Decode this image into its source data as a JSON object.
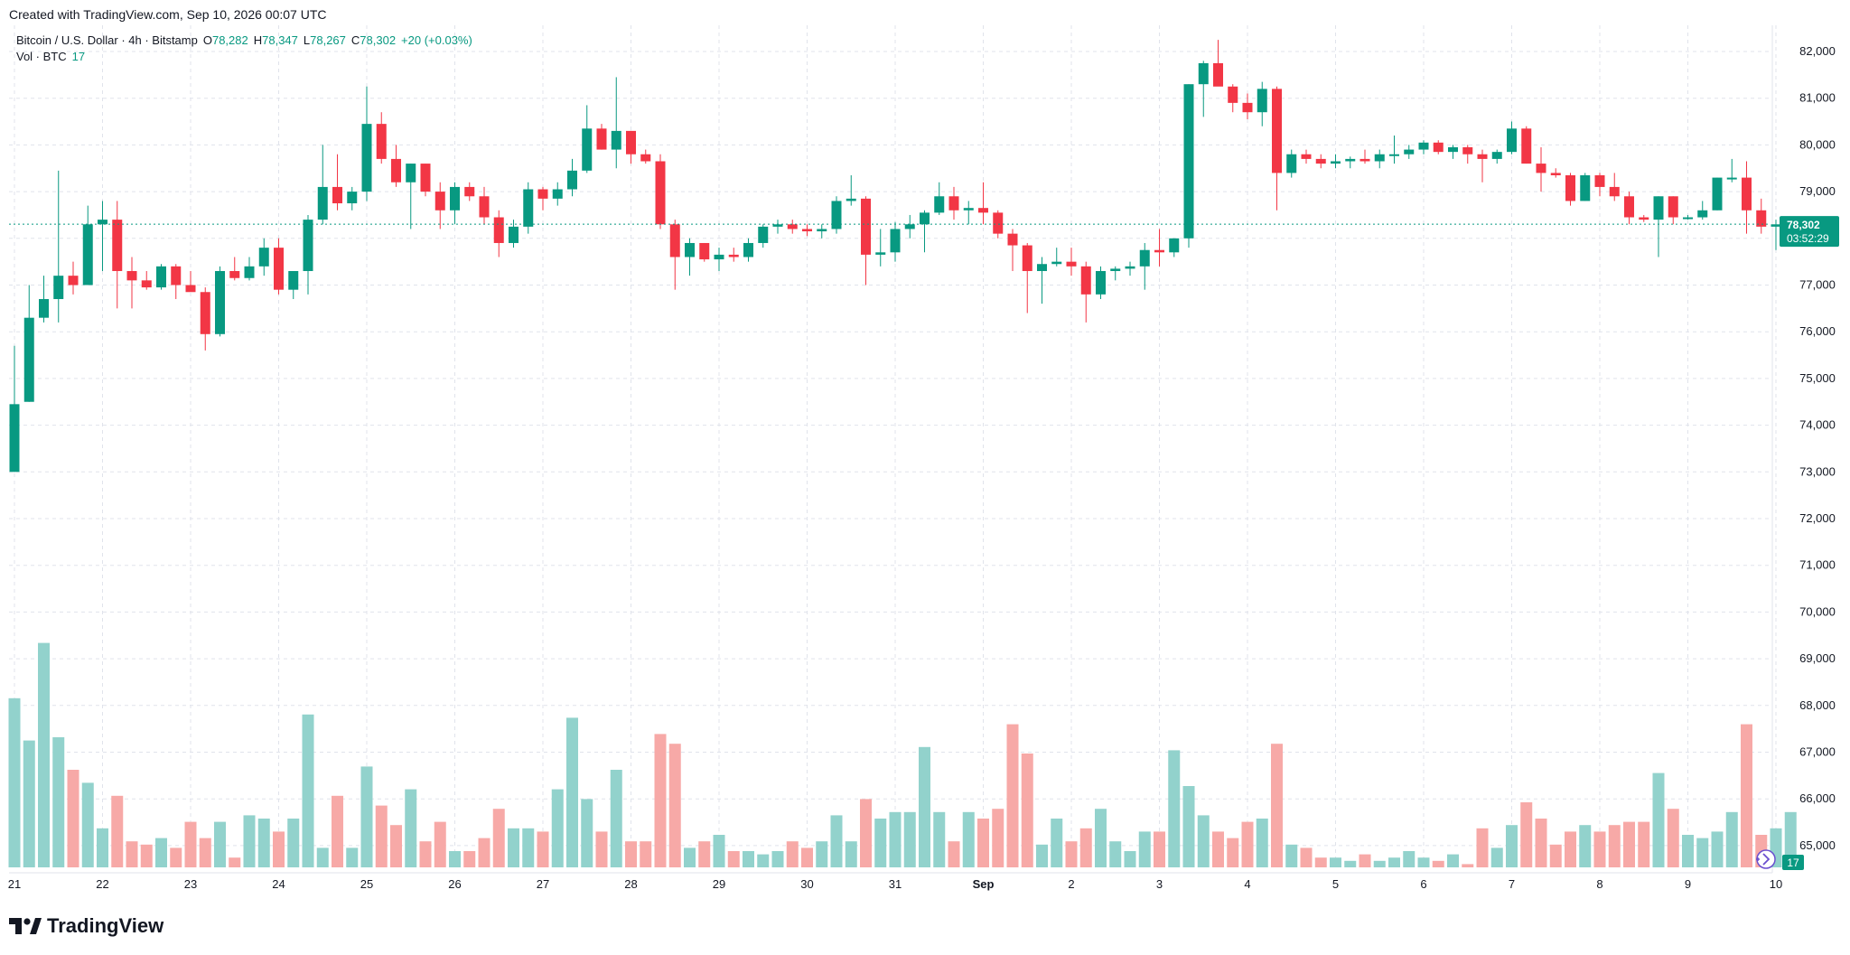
{
  "header": {
    "credit": "Created with TradingView.com, Sep 10, 2026 00:07 UTC"
  },
  "legend": {
    "symbol": "Bitcoin / U.S. Dollar · 4h · Bitstamp",
    "o_label": "O",
    "o": "78,282",
    "h_label": "H",
    "h": "78,347",
    "l_label": "L",
    "l": "78,267",
    "c_label": "C",
    "c": "78,302",
    "change": "+20 (+0.03%)",
    "vol_label": "Vol · BTC",
    "vol": "17"
  },
  "price_tag": {
    "price": "78,302",
    "countdown": "03:52:29"
  },
  "volume_tag": "17",
  "brand": "TradingView",
  "colors": {
    "up": "#089981",
    "down": "#f23645",
    "vol_up": "#92d2cc",
    "vol_down": "#f7a9a7",
    "grid": "#e0e3eb"
  },
  "chart_data": {
    "type": "candlestick",
    "interval": "4h",
    "price_axis": {
      "ticks": [
        "82,000",
        "81,000",
        "80,000",
        "79,000",
        "78,000",
        "77,000",
        "76,000",
        "75,000",
        "74,000",
        "73,000",
        "72,000",
        "71,000",
        "70,000",
        "69,000",
        "68,000",
        "67,000",
        "66,000",
        "65,000"
      ],
      "ylim": [
        64500,
        82500
      ]
    },
    "time_axis": {
      "labels": [
        "21",
        "22",
        "23",
        "24",
        "25",
        "26",
        "27",
        "28",
        "29",
        "30",
        "31",
        "Sep",
        "2",
        "3",
        "4",
        "5",
        "6",
        "7",
        "8",
        "9",
        "10"
      ]
    },
    "last_close": 78302,
    "candles": [
      {
        "o": 73000,
        "h": 75700,
        "l": 73000,
        "c": 74450,
        "v": 52
      },
      {
        "o": 74500,
        "h": 77000,
        "l": 74500,
        "c": 76300,
        "v": 39
      },
      {
        "o": 76300,
        "h": 77200,
        "l": 76200,
        "c": 76700,
        "v": 69
      },
      {
        "o": 76700,
        "h": 79450,
        "l": 76200,
        "c": 77200,
        "v": 40
      },
      {
        "o": 77200,
        "h": 77500,
        "l": 76800,
        "c": 77000,
        "v": 30
      },
      {
        "o": 77000,
        "h": 78700,
        "l": 77000,
        "c": 78300,
        "v": 26
      },
      {
        "o": 78300,
        "h": 78800,
        "l": 77300,
        "c": 78400,
        "v": 12
      },
      {
        "o": 78400,
        "h": 78800,
        "l": 76500,
        "c": 77300,
        "v": 22
      },
      {
        "o": 77300,
        "h": 77600,
        "l": 76500,
        "c": 77100,
        "v": 8
      },
      {
        "o": 77100,
        "h": 77300,
        "l": 76900,
        "c": 76950,
        "v": 7
      },
      {
        "o": 76950,
        "h": 77450,
        "l": 76900,
        "c": 77400,
        "v": 9
      },
      {
        "o": 77400,
        "h": 77450,
        "l": 76700,
        "c": 77000,
        "v": 6
      },
      {
        "o": 77000,
        "h": 77300,
        "l": 76900,
        "c": 76850,
        "v": 14
      },
      {
        "o": 76850,
        "h": 76950,
        "l": 75600,
        "c": 75950,
        "v": 9
      },
      {
        "o": 75950,
        "h": 77400,
        "l": 75900,
        "c": 77300,
        "v": 14
      },
      {
        "o": 77300,
        "h": 77600,
        "l": 77100,
        "c": 77150,
        "v": 3
      },
      {
        "o": 77150,
        "h": 77600,
        "l": 77100,
        "c": 77400,
        "v": 16
      },
      {
        "o": 77400,
        "h": 78000,
        "l": 77200,
        "c": 77800,
        "v": 15
      },
      {
        "o": 77800,
        "h": 78000,
        "l": 76800,
        "c": 76900,
        "v": 11
      },
      {
        "o": 76900,
        "h": 77300,
        "l": 76700,
        "c": 77300,
        "v": 15
      },
      {
        "o": 77300,
        "h": 78500,
        "l": 76800,
        "c": 78400,
        "v": 47
      },
      {
        "o": 78400,
        "h": 80000,
        "l": 78300,
        "c": 79100,
        "v": 6
      },
      {
        "o": 79100,
        "h": 79800,
        "l": 78600,
        "c": 78750,
        "v": 22
      },
      {
        "o": 78750,
        "h": 79100,
        "l": 78600,
        "c": 79000,
        "v": 6
      },
      {
        "o": 79000,
        "h": 81250,
        "l": 78800,
        "c": 80450,
        "v": 31
      },
      {
        "o": 80450,
        "h": 80700,
        "l": 79600,
        "c": 79700,
        "v": 19
      },
      {
        "o": 79700,
        "h": 80000,
        "l": 79100,
        "c": 79200,
        "v": 13
      },
      {
        "o": 79200,
        "h": 79600,
        "l": 78200,
        "c": 79600,
        "v": 24
      },
      {
        "o": 79600,
        "h": 79600,
        "l": 78900,
        "c": 79000,
        "v": 8
      },
      {
        "o": 79000,
        "h": 79200,
        "l": 78200,
        "c": 78600,
        "v": 14
      },
      {
        "o": 78600,
        "h": 79200,
        "l": 78300,
        "c": 79100,
        "v": 5
      },
      {
        "o": 79100,
        "h": 79200,
        "l": 78800,
        "c": 78900,
        "v": 5
      },
      {
        "o": 78900,
        "h": 79100,
        "l": 78300,
        "c": 78450,
        "v": 9
      },
      {
        "o": 78450,
        "h": 78600,
        "l": 77600,
        "c": 77900,
        "v": 18
      },
      {
        "o": 77900,
        "h": 78400,
        "l": 77800,
        "c": 78250,
        "v": 12
      },
      {
        "o": 78250,
        "h": 79200,
        "l": 78100,
        "c": 79050,
        "v": 12
      },
      {
        "o": 79050,
        "h": 79100,
        "l": 78600,
        "c": 78850,
        "v": 11
      },
      {
        "o": 78850,
        "h": 79200,
        "l": 78700,
        "c": 79050,
        "v": 24
      },
      {
        "o": 79050,
        "h": 79700,
        "l": 78900,
        "c": 79450,
        "v": 46
      },
      {
        "o": 79450,
        "h": 80850,
        "l": 79400,
        "c": 80350,
        "v": 21
      },
      {
        "o": 80350,
        "h": 80450,
        "l": 79900,
        "c": 79900,
        "v": 11
      },
      {
        "o": 79900,
        "h": 81450,
        "l": 79500,
        "c": 80300,
        "v": 30
      },
      {
        "o": 80300,
        "h": 80300,
        "l": 79600,
        "c": 79800,
        "v": 8
      },
      {
        "o": 79800,
        "h": 79900,
        "l": 79600,
        "c": 79650,
        "v": 8
      },
      {
        "o": 79650,
        "h": 79800,
        "l": 78200,
        "c": 78300,
        "v": 41
      },
      {
        "o": 78300,
        "h": 78400,
        "l": 76900,
        "c": 77600,
        "v": 38
      },
      {
        "o": 77600,
        "h": 78000,
        "l": 77200,
        "c": 77900,
        "v": 6
      },
      {
        "o": 77900,
        "h": 77900,
        "l": 77500,
        "c": 77550,
        "v": 8
      },
      {
        "o": 77550,
        "h": 77800,
        "l": 77300,
        "c": 77650,
        "v": 10
      },
      {
        "o": 77650,
        "h": 77800,
        "l": 77500,
        "c": 77600,
        "v": 5
      },
      {
        "o": 77600,
        "h": 78000,
        "l": 77500,
        "c": 77900,
        "v": 5
      },
      {
        "o": 77900,
        "h": 78300,
        "l": 77800,
        "c": 78250,
        "v": 4
      },
      {
        "o": 78250,
        "h": 78400,
        "l": 78100,
        "c": 78300,
        "v": 5
      },
      {
        "o": 78300,
        "h": 78400,
        "l": 78100,
        "c": 78200,
        "v": 8
      },
      {
        "o": 78200,
        "h": 78300,
        "l": 78050,
        "c": 78150,
        "v": 6
      },
      {
        "o": 78150,
        "h": 78300,
        "l": 78000,
        "c": 78200,
        "v": 8
      },
      {
        "o": 78200,
        "h": 78900,
        "l": 78100,
        "c": 78800,
        "v": 16
      },
      {
        "o": 78800,
        "h": 79350,
        "l": 78700,
        "c": 78850,
        "v": 8
      },
      {
        "o": 78850,
        "h": 78900,
        "l": 77000,
        "c": 77650,
        "v": 21
      },
      {
        "o": 77650,
        "h": 78200,
        "l": 77400,
        "c": 77700,
        "v": 15
      },
      {
        "o": 77700,
        "h": 78350,
        "l": 77500,
        "c": 78200,
        "v": 17
      },
      {
        "o": 78200,
        "h": 78500,
        "l": 78000,
        "c": 78300,
        "v": 17
      },
      {
        "o": 78300,
        "h": 78600,
        "l": 77700,
        "c": 78550,
        "v": 37
      },
      {
        "o": 78550,
        "h": 79200,
        "l": 78500,
        "c": 78900,
        "v": 17
      },
      {
        "o": 78900,
        "h": 79100,
        "l": 78400,
        "c": 78600,
        "v": 8
      },
      {
        "o": 78600,
        "h": 78800,
        "l": 78300,
        "c": 78650,
        "v": 17
      },
      {
        "o": 78650,
        "h": 79200,
        "l": 78300,
        "c": 78550,
        "v": 15
      },
      {
        "o": 78550,
        "h": 78600,
        "l": 78000,
        "c": 78100,
        "v": 18
      },
      {
        "o": 78100,
        "h": 78200,
        "l": 77300,
        "c": 77850,
        "v": 44
      },
      {
        "o": 77850,
        "h": 77900,
        "l": 76400,
        "c": 77300,
        "v": 35
      },
      {
        "o": 77300,
        "h": 77600,
        "l": 76600,
        "c": 77450,
        "v": 7
      },
      {
        "o": 77450,
        "h": 77800,
        "l": 77400,
        "c": 77500,
        "v": 15
      },
      {
        "o": 77500,
        "h": 77800,
        "l": 77200,
        "c": 77400,
        "v": 8
      },
      {
        "o": 77400,
        "h": 77500,
        "l": 76200,
        "c": 76800,
        "v": 12
      },
      {
        "o": 76800,
        "h": 77400,
        "l": 76700,
        "c": 77300,
        "v": 18
      },
      {
        "o": 77300,
        "h": 77400,
        "l": 77100,
        "c": 77350,
        "v": 8
      },
      {
        "o": 77350,
        "h": 77500,
        "l": 77200,
        "c": 77400,
        "v": 5
      },
      {
        "o": 77400,
        "h": 77900,
        "l": 76900,
        "c": 77750,
        "v": 11
      },
      {
        "o": 77750,
        "h": 78200,
        "l": 77400,
        "c": 77700,
        "v": 11
      },
      {
        "o": 77700,
        "h": 78000,
        "l": 77600,
        "c": 78000,
        "v": 36
      },
      {
        "o": 78000,
        "h": 81300,
        "l": 77800,
        "c": 81300,
        "v": 25
      },
      {
        "o": 81300,
        "h": 81800,
        "l": 80600,
        "c": 81750,
        "v": 16
      },
      {
        "o": 81750,
        "h": 82250,
        "l": 81300,
        "c": 81250,
        "v": 11
      },
      {
        "o": 81250,
        "h": 81300,
        "l": 80700,
        "c": 80900,
        "v": 9
      },
      {
        "o": 80900,
        "h": 81100,
        "l": 80550,
        "c": 80700,
        "v": 14
      },
      {
        "o": 80700,
        "h": 81350,
        "l": 80400,
        "c": 81200,
        "v": 15
      },
      {
        "o": 81200,
        "h": 81250,
        "l": 78600,
        "c": 79400,
        "v": 38
      },
      {
        "o": 79400,
        "h": 79900,
        "l": 79300,
        "c": 79800,
        "v": 7
      },
      {
        "o": 79800,
        "h": 79900,
        "l": 79600,
        "c": 79700,
        "v": 6
      },
      {
        "o": 79700,
        "h": 79800,
        "l": 79500,
        "c": 79600,
        "v": 3
      },
      {
        "o": 79600,
        "h": 79800,
        "l": 79500,
        "c": 79650,
        "v": 3
      },
      {
        "o": 79650,
        "h": 79750,
        "l": 79500,
        "c": 79700,
        "v": 2
      },
      {
        "o": 79700,
        "h": 79900,
        "l": 79600,
        "c": 79650,
        "v": 4
      },
      {
        "o": 79650,
        "h": 79900,
        "l": 79500,
        "c": 79800,
        "v": 2
      },
      {
        "o": 79800,
        "h": 80200,
        "l": 79600,
        "c": 79800,
        "v": 3
      },
      {
        "o": 79800,
        "h": 80000,
        "l": 79700,
        "c": 79900,
        "v": 5
      },
      {
        "o": 79900,
        "h": 80100,
        "l": 79800,
        "c": 80050,
        "v": 3
      },
      {
        "o": 80050,
        "h": 80100,
        "l": 79800,
        "c": 79850,
        "v": 2
      },
      {
        "o": 79850,
        "h": 80000,
        "l": 79700,
        "c": 79950,
        "v": 4
      },
      {
        "o": 79950,
        "h": 80000,
        "l": 79600,
        "c": 79800,
        "v": 1
      },
      {
        "o": 79800,
        "h": 79900,
        "l": 79200,
        "c": 79700,
        "v": 12
      },
      {
        "o": 79700,
        "h": 79900,
        "l": 79600,
        "c": 79850,
        "v": 6
      },
      {
        "o": 79850,
        "h": 80500,
        "l": 79800,
        "c": 80350,
        "v": 13
      },
      {
        "o": 80350,
        "h": 80400,
        "l": 79600,
        "c": 79600,
        "v": 20
      },
      {
        "o": 79600,
        "h": 79950,
        "l": 79000,
        "c": 79400,
        "v": 15
      },
      {
        "o": 79400,
        "h": 79500,
        "l": 79300,
        "c": 79350,
        "v": 7
      },
      {
        "o": 79350,
        "h": 79400,
        "l": 78700,
        "c": 78800,
        "v": 11
      },
      {
        "o": 78800,
        "h": 79400,
        "l": 78800,
        "c": 79350,
        "v": 13
      },
      {
        "o": 79350,
        "h": 79400,
        "l": 78900,
        "c": 79100,
        "v": 11
      },
      {
        "o": 79100,
        "h": 79400,
        "l": 78800,
        "c": 78900,
        "v": 13
      },
      {
        "o": 78900,
        "h": 79000,
        "l": 78300,
        "c": 78450,
        "v": 14
      },
      {
        "o": 78450,
        "h": 78500,
        "l": 78350,
        "c": 78400,
        "v": 14
      },
      {
        "o": 78400,
        "h": 78900,
        "l": 77600,
        "c": 78900,
        "v": 29
      },
      {
        "o": 78900,
        "h": 78900,
        "l": 78300,
        "c": 78450,
        "v": 18
      },
      {
        "o": 78450,
        "h": 78500,
        "l": 78400,
        "c": 78450,
        "v": 10
      },
      {
        "o": 78450,
        "h": 78800,
        "l": 78400,
        "c": 78600,
        "v": 9
      },
      {
        "o": 78600,
        "h": 79300,
        "l": 78600,
        "c": 79300,
        "v": 11
      },
      {
        "o": 79300,
        "h": 79700,
        "l": 79200,
        "c": 79300,
        "v": 17
      },
      {
        "o": 79300,
        "h": 79650,
        "l": 78100,
        "c": 78600,
        "v": 44
      },
      {
        "o": 78600,
        "h": 78850,
        "l": 78100,
        "c": 78250,
        "v": 10
      },
      {
        "o": 78250,
        "h": 78400,
        "l": 77750,
        "c": 78300,
        "v": 12
      },
      {
        "o": 78282,
        "h": 78347,
        "l": 78267,
        "c": 78302,
        "v": 17
      }
    ]
  }
}
